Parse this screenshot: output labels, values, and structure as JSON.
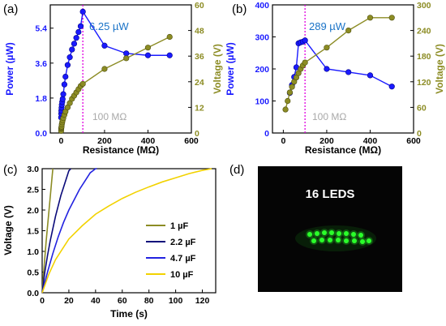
{
  "chart_data": [
    {
      "panel": "(a)",
      "type": "line",
      "xlabel": "Resistance (MΩ)",
      "ylabel_left": "Power (µW)",
      "ylabel_right": "Voltage (V)",
      "xlim": [
        -50,
        600
      ],
      "ylim_left": [
        0,
        6.6
      ],
      "ylim_right": [
        0,
        60
      ],
      "xticks": [
        0,
        200,
        400,
        600
      ],
      "yticks_left": [
        "0.0",
        "1.8",
        "3.6",
        "5.4"
      ],
      "yticks_right": [
        "0",
        "12",
        "24",
        "36",
        "48",
        "60"
      ],
      "peak_label": "6.25 µW",
      "marker_x": 100,
      "annotation": "100 MΩ",
      "colors": {
        "power": "#1a1aff",
        "voltage": "#8c8c24",
        "marker": "#e000e0",
        "peak": "#1a73c7",
        "annotation": "#a9a9a9"
      },
      "series": [
        {
          "axis": "left",
          "x": [
            0,
            0.5,
            1,
            2,
            3,
            5,
            7,
            10,
            15,
            20,
            30,
            40,
            50,
            60,
            70,
            80,
            90,
            100,
            200,
            300,
            400,
            500
          ],
          "values": [
            0.8,
            1.0,
            1.15,
            1.3,
            1.45,
            1.6,
            1.75,
            2.0,
            2.5,
            2.9,
            3.5,
            3.9,
            4.3,
            4.6,
            4.9,
            5.2,
            5.5,
            6.25,
            4.5,
            4.1,
            4.0,
            4.0
          ]
        },
        {
          "axis": "right",
          "x": [
            0,
            0.5,
            1,
            2,
            3,
            5,
            7,
            10,
            15,
            20,
            30,
            40,
            50,
            60,
            70,
            80,
            90,
            100,
            200,
            300,
            400,
            500
          ],
          "values": [
            1.0,
            2.0,
            2.5,
            3.0,
            4.0,
            5.0,
            6.0,
            7.0,
            8.5,
            10.0,
            12.0,
            14.0,
            16.0,
            17.5,
            19.0,
            20.5,
            22.0,
            23.0,
            30.0,
            35.0,
            40.0,
            45.0
          ]
        }
      ]
    },
    {
      "panel": "(b)",
      "type": "line",
      "xlabel": "Resistance (MΩ)",
      "ylabel_left": "Power (µW)",
      "ylabel_right": "Voltage (V)",
      "xlim": [
        -50,
        600
      ],
      "ylim_left": [
        0,
        400
      ],
      "ylim_right": [
        0,
        300
      ],
      "xticks": [
        0,
        200,
        400,
        600
      ],
      "yticks_left": [
        "0",
        "100",
        "200",
        "300",
        "400"
      ],
      "yticks_right": [
        "0",
        "60",
        "120",
        "180",
        "240",
        "300"
      ],
      "peak_label": "289 µW",
      "marker_x": 100,
      "annotation": "100 MΩ",
      "colors": {
        "power": "#1a1aff",
        "voltage": "#8c8c24",
        "marker": "#e000e0",
        "peak": "#1a73c7",
        "annotation": "#a9a9a9"
      },
      "series": [
        {
          "axis": "left",
          "x": [
            30,
            40,
            50,
            60,
            70,
            80,
            90,
            100,
            200,
            300,
            400,
            500
          ],
          "values": [
            125,
            150,
            175,
            205,
            280,
            283,
            285,
            289,
            200,
            190,
            180,
            145
          ]
        },
        {
          "axis": "right",
          "x": [
            10,
            20,
            30,
            40,
            50,
            60,
            70,
            80,
            90,
            100,
            200,
            300,
            400,
            500
          ],
          "values": [
            55,
            75,
            95,
            108,
            120,
            130,
            140,
            150,
            158,
            165,
            200,
            240,
            270,
            270
          ]
        }
      ]
    },
    {
      "panel": "(c)",
      "type": "line",
      "xlabel": "Time (s)",
      "ylabel": "Voltage (V)",
      "xlim": [
        0,
        130
      ],
      "ylim": [
        0,
        3.0
      ],
      "xticks": [
        0,
        20,
        40,
        60,
        80,
        100,
        120
      ],
      "yticks": [
        "0.0",
        "0.5",
        "1.0",
        "1.5",
        "2.0",
        "2.5",
        "3.0"
      ],
      "series": [
        {
          "name": "1 µF",
          "color": "#8c8c24",
          "x": [
            0,
            1,
            2,
            3,
            4,
            5,
            6,
            7,
            8
          ],
          "values": [
            0,
            0.45,
            0.85,
            1.25,
            1.6,
            1.95,
            2.3,
            2.65,
            3.0
          ]
        },
        {
          "name": "2.2 µF",
          "color": "#0a0a7a",
          "x": [
            0,
            2,
            4,
            6,
            8,
            10,
            12,
            14,
            16,
            18,
            20,
            21.5
          ],
          "values": [
            0,
            0.5,
            0.9,
            1.25,
            1.55,
            1.85,
            2.1,
            2.35,
            2.55,
            2.75,
            2.95,
            3.0
          ]
        },
        {
          "name": "4.7 µF",
          "color": "#2222e0",
          "x": [
            0,
            4,
            8,
            12,
            16,
            20,
            24,
            28,
            32,
            36,
            40,
            41
          ],
          "values": [
            0,
            0.5,
            0.95,
            1.35,
            1.7,
            2.0,
            2.25,
            2.5,
            2.7,
            2.9,
            3.0,
            3.0
          ]
        },
        {
          "name": "10 µF",
          "color": "#f2d200",
          "x": [
            0,
            5,
            10,
            15,
            20,
            30,
            40,
            50,
            60,
            70,
            80,
            90,
            100,
            110,
            120,
            127
          ],
          "values": [
            0,
            0.45,
            0.8,
            1.05,
            1.3,
            1.62,
            1.9,
            2.1,
            2.28,
            2.43,
            2.56,
            2.68,
            2.78,
            2.88,
            2.96,
            3.0
          ]
        }
      ]
    }
  ],
  "photo": {
    "panel": "(d)",
    "caption": "16 LEDS",
    "background": "#050505",
    "led_color": "#2aff2a"
  }
}
